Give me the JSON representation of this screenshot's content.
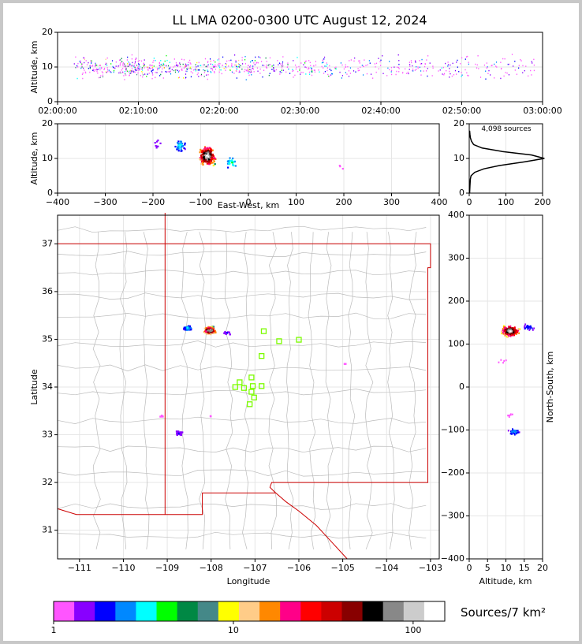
{
  "figure": {
    "title": "LL LMA 0200-0300 UTC August 12, 2024",
    "colorbar_label": "Sources/7 km²",
    "source_count_label": "4,098 sources"
  },
  "colors": {
    "state_border": "#cc0000",
    "county_lines": "#bbbbbb",
    "grid": "#e6e6e6",
    "station_marker": "#7cfc00"
  },
  "chart_data": [
    {
      "id": "time-altitude",
      "type": "scatter",
      "ylabel": "Altitude, km",
      "ylim": [
        0,
        20
      ],
      "yticks": [
        "0",
        "10",
        "20"
      ],
      "xlim": [
        "02:00:00",
        "03:00:00"
      ],
      "xticks": [
        "02:00:00",
        "02:10:00",
        "02:20:00",
        "02:30:00",
        "02:40:00",
        "02:50:00",
        "03:00:00"
      ],
      "density": [
        {
          "t_min": 2,
          "density": 0.9
        },
        {
          "t_min": 6,
          "density": 0.8
        },
        {
          "t_min": 8,
          "density": 1.0
        },
        {
          "t_min": 12,
          "density": 1.0
        },
        {
          "t_min": 16,
          "density": 0.9
        },
        {
          "t_min": 20,
          "density": 0.9
        },
        {
          "t_min": 24,
          "density": 0.7
        },
        {
          "t_min": 28,
          "density": 0.6
        },
        {
          "t_min": 32,
          "density": 0.5
        },
        {
          "t_min": 36,
          "density": 0.4
        },
        {
          "t_min": 40,
          "density": 0.4
        },
        {
          "t_min": 44,
          "density": 0.4
        },
        {
          "t_min": 48,
          "density": 0.4
        },
        {
          "t_min": 52,
          "density": 0.35
        },
        {
          "t_min": 56,
          "density": 0.3
        }
      ]
    },
    {
      "id": "ew-altitude",
      "type": "heatmap",
      "xlabel": "East-West, km",
      "ylabel": "Altitude, km",
      "xlim": [
        -400,
        400
      ],
      "ylim": [
        0,
        20
      ],
      "xticks": [
        "−400",
        "−300",
        "−200",
        "−100",
        "0",
        "100",
        "200",
        "300",
        "400"
      ],
      "yticks": [
        "0",
        "10",
        "20"
      ],
      "clusters": [
        {
          "x": -88,
          "y": 11,
          "count": 220,
          "peak": 1.0
        },
        {
          "x": -145,
          "y": 14,
          "count": 40,
          "peak": 0.25
        },
        {
          "x": -190,
          "y": 14,
          "count": 8,
          "peak": 0.1
        },
        {
          "x": -37,
          "y": 9,
          "count": 25,
          "peak": 0.3
        },
        {
          "x": 190,
          "y": 8,
          "count": 3,
          "peak": 0.05
        }
      ]
    },
    {
      "id": "altitude-histogram",
      "type": "line",
      "xlim": [
        0,
        200
      ],
      "ylim": [
        0,
        20
      ],
      "xticks": [
        "0",
        "100",
        "200"
      ],
      "yticks": [
        "0",
        "10",
        "20"
      ],
      "profile": [
        {
          "alt": 0,
          "count": 1
        },
        {
          "alt": 2,
          "count": 2
        },
        {
          "alt": 4,
          "count": 3
        },
        {
          "alt": 5,
          "count": 5
        },
        {
          "alt": 6,
          "count": 15
        },
        {
          "alt": 7,
          "count": 40
        },
        {
          "alt": 8,
          "count": 85
        },
        {
          "alt": 9,
          "count": 150
        },
        {
          "alt": 10,
          "count": 205
        },
        {
          "alt": 11,
          "count": 170
        },
        {
          "alt": 12,
          "count": 90
        },
        {
          "alt": 13,
          "count": 35
        },
        {
          "alt": 14,
          "count": 12
        },
        {
          "alt": 15,
          "count": 6
        },
        {
          "alt": 16,
          "count": 3
        },
        {
          "alt": 17,
          "count": 2
        },
        {
          "alt": 18,
          "count": 1
        }
      ]
    },
    {
      "id": "map",
      "type": "heatmap",
      "xlabel": "Longitude",
      "ylabel": "Latitude",
      "xlim": [
        -111.5,
        -102.8
      ],
      "ylim": [
        30.4,
        37.6
      ],
      "xticks": [
        "−111",
        "−110",
        "−109",
        "−108",
        "−107",
        "−106",
        "−105",
        "−104",
        "−103"
      ],
      "yticks": [
        "31",
        "32",
        "33",
        "34",
        "35",
        "36",
        "37"
      ],
      "clusters": [
        {
          "lon": -108.05,
          "lat": 35.2,
          "count": 180,
          "peak": 1.0
        },
        {
          "lon": -108.55,
          "lat": 35.25,
          "count": 40,
          "peak": 0.25
        },
        {
          "lon": -107.65,
          "lat": 35.15,
          "count": 10,
          "peak": 0.12
        },
        {
          "lon": -108.75,
          "lat": 33.05,
          "count": 18,
          "peak": 0.12
        },
        {
          "lon": -109.15,
          "lat": 33.4,
          "count": 4,
          "peak": 0.05
        },
        {
          "lon": -108.0,
          "lat": 33.42,
          "count": 2,
          "peak": 0.03
        },
        {
          "lon": -104.95,
          "lat": 34.5,
          "count": 2,
          "peak": 0.03
        }
      ],
      "stations": [
        {
          "lon": -106.8,
          "lat": 35.17
        },
        {
          "lon": -106.45,
          "lat": 34.96
        },
        {
          "lon": -106.0,
          "lat": 34.99
        },
        {
          "lon": -106.85,
          "lat": 34.65
        },
        {
          "lon": -107.08,
          "lat": 34.2
        },
        {
          "lon": -107.35,
          "lat": 34.1
        },
        {
          "lon": -107.45,
          "lat": 34.0
        },
        {
          "lon": -107.25,
          "lat": 33.98
        },
        {
          "lon": -107.05,
          "lat": 34.02
        },
        {
          "lon": -106.85,
          "lat": 34.02
        },
        {
          "lon": -107.08,
          "lat": 33.9
        },
        {
          "lon": -107.02,
          "lat": 33.78
        },
        {
          "lon": -107.12,
          "lat": 33.64
        }
      ]
    },
    {
      "id": "altitude-northsouth",
      "type": "heatmap",
      "xlabel": "Altitude, km",
      "ylabel": "North-South, km",
      "xlim": [
        0,
        20
      ],
      "ylim": [
        -400,
        400
      ],
      "xticks": [
        "0",
        "5",
        "10",
        "15",
        "20"
      ],
      "yticks": [
        "−400",
        "−300",
        "−200",
        "−100",
        "0",
        "100",
        "200",
        "300",
        "400"
      ],
      "clusters": [
        {
          "x": 11,
          "y": 132,
          "count": 220,
          "peak": 1.0
        },
        {
          "x": 16,
          "y": 140,
          "count": 25,
          "peak": 0.15
        },
        {
          "x": 12,
          "y": -102,
          "count": 35,
          "peak": 0.2
        },
        {
          "x": 9,
          "y": 62,
          "count": 5,
          "peak": 0.05
        },
        {
          "x": 11,
          "y": -63,
          "count": 6,
          "peak": 0.05
        }
      ]
    },
    {
      "id": "colorbar",
      "type": "heatmap",
      "scale": "log",
      "range": [
        1,
        150
      ],
      "ticks": [
        "1",
        "10",
        "100"
      ],
      "colors": [
        "#ff55ff",
        "#8800ff",
        "#0000ff",
        "#0088ff",
        "#00ffff",
        "#00ff00",
        "#008844",
        "#448888",
        "#ffff00",
        "#ffcc88",
        "#ff8800",
        "#ff0088",
        "#ff0000",
        "#cc0000",
        "#880000",
        "#000000",
        "#888888",
        "#cccccc",
        "#ffffff"
      ]
    }
  ]
}
